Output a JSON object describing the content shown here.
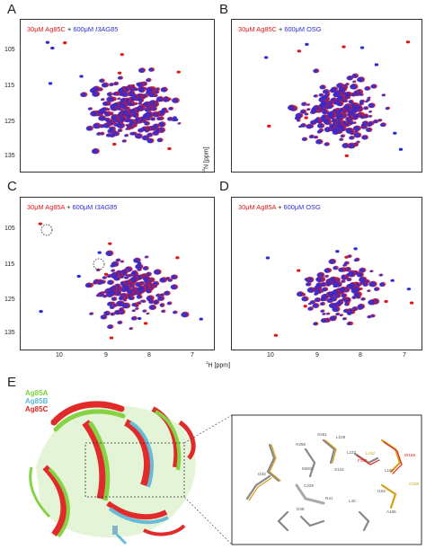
{
  "panels": [
    {
      "letter": "A",
      "legend": {
        "left": "30μM Ag85C",
        "plus": " + ",
        "right": "600μM ",
        "italic": "I3AG85"
      }
    },
    {
      "letter": "B",
      "legend": {
        "left": "30μM Ag85C",
        "plus": " + ",
        "right": "600μM OSG",
        "italic": ""
      }
    },
    {
      "letter": "C",
      "legend": {
        "left": "30μM Ag85A",
        "plus": " + ",
        "right": "600μM ",
        "italic": "I3AG85"
      }
    },
    {
      "letter": "D",
      "legend": {
        "left": "30μM Ag85A",
        "plus": " + ",
        "right": "600μM OSG",
        "italic": ""
      }
    }
  ],
  "axes": {
    "y_label": "15N [ppm]",
    "x_label": "1H [ppm]",
    "y_ticks": [
      "105",
      "115",
      "125",
      "135"
    ],
    "x_ticks": [
      "10",
      "9",
      "8",
      "7"
    ]
  },
  "panel_e": {
    "letter": "E",
    "legend": [
      {
        "label": "Ag85A",
        "color": "#7fd13a"
      },
      {
        "label": "Ag85B",
        "color": "#5fb8d8"
      },
      {
        "label": "Ag85C",
        "color": "#e02020"
      }
    ],
    "residues": [
      {
        "label": "S261",
        "color": "#555"
      },
      {
        "label": "L228",
        "color": "#555"
      },
      {
        "label": "H258",
        "color": "#555"
      },
      {
        "label": "L227",
        "color": "#555"
      },
      {
        "label": "L152",
        "color": "#d4a017"
      },
      {
        "label": "F150",
        "color": "#e02020"
      },
      {
        "label": "W158",
        "color": "#e02020"
      },
      {
        "label": "M262",
        "color": "#555"
      },
      {
        "label": "S124",
        "color": "#555"
      },
      {
        "label": "L167",
        "color": "#555"
      },
      {
        "label": "I232",
        "color": "#555"
      },
      {
        "label": "G160",
        "color": "#d4a017"
      },
      {
        "label": "C229",
        "color": "#555"
      },
      {
        "label": "R41",
        "color": "#555"
      },
      {
        "label": "L40",
        "color": "#555"
      },
      {
        "label": "I162",
        "color": "#555"
      },
      {
        "label": "D38",
        "color": "#555"
      },
      {
        "label": "A165",
        "color": "#555"
      }
    ]
  },
  "colors": {
    "ref": "#e01818",
    "ligand": "#2b2bd8"
  }
}
